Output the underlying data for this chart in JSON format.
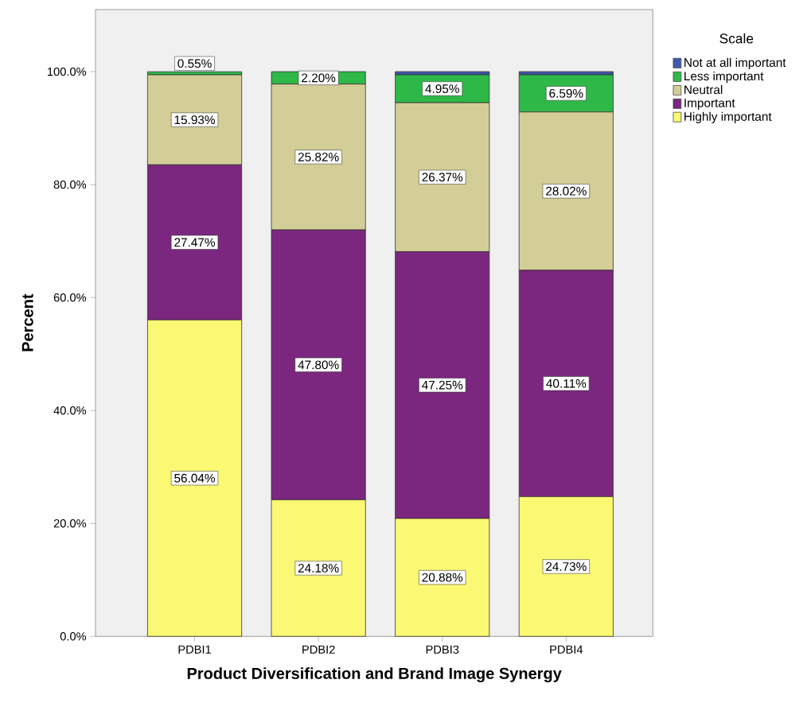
{
  "chart_data": {
    "type": "bar",
    "stacked": true,
    "xlabel": "Product Diversification and Brand Image Synergy",
    "ylabel": "Percent",
    "legend_title": "Scale",
    "legend": "top right",
    "categories": [
      "PDBI1",
      "PDBI2",
      "PDBI3",
      "PDBI4"
    ],
    "ylim": [
      0,
      111
    ],
    "yticks": [
      {
        "value": 0,
        "label": "0.0%"
      },
      {
        "value": 20,
        "label": "20.0%"
      },
      {
        "value": 40,
        "label": "40.0%"
      },
      {
        "value": 60,
        "label": "60.0%"
      },
      {
        "value": 80,
        "label": "80.0%"
      },
      {
        "value": 100,
        "label": "100.0%"
      }
    ],
    "series": [
      {
        "name": "Highly important",
        "color": "#fbf873",
        "values": [
          56.04,
          24.18,
          20.88,
          24.73
        ],
        "value_labels": [
          "56.04%",
          "24.18%",
          "20.88%",
          "24.73%"
        ]
      },
      {
        "name": "Important",
        "color": "#7b277f",
        "values": [
          27.47,
          47.8,
          47.25,
          40.11
        ],
        "value_labels": [
          "27.47%",
          "47.80%",
          "47.25%",
          "40.11%"
        ]
      },
      {
        "name": "Neutral",
        "color": "#d3ce97",
        "values": [
          15.93,
          25.82,
          26.37,
          28.02
        ],
        "value_labels": [
          "15.93%",
          "25.82%",
          "26.37%",
          "28.02%"
        ]
      },
      {
        "name": "Less important",
        "color": "#2eb848",
        "values": [
          0.55,
          2.2,
          4.95,
          6.59
        ],
        "value_labels": [
          "0.55%",
          "2.20%",
          "4.95%",
          "6.59%"
        ]
      },
      {
        "name": "Not at all important",
        "color": "#3e58ac",
        "values": [
          0,
          0,
          0.55,
          0.55
        ],
        "value_labels": [
          null,
          null,
          null,
          null
        ]
      }
    ]
  }
}
